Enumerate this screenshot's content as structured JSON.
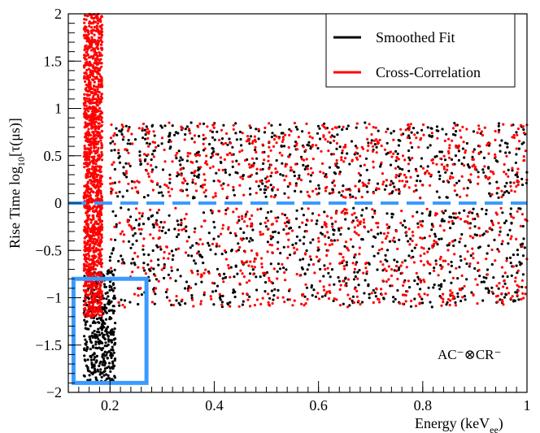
{
  "chart_data": {
    "type": "scatter",
    "title": "",
    "xlabel": "Energy (keV",
    "xlabel_sub": "ee",
    "xlabel_suffix": ")",
    "ylabel": "Rise Time log",
    "ylabel_sub": "10",
    "ylabel_suffix": "[τ(μs)]",
    "xlim": [
      0.12,
      1.0
    ],
    "ylim": [
      -2,
      2
    ],
    "x_ticks": [
      0.2,
      0.4,
      0.6,
      0.8,
      1.0
    ],
    "x_tick_labels": [
      "0.2",
      "0.4",
      "0.6",
      "0.8",
      "1"
    ],
    "y_ticks": [
      -2,
      -1.5,
      -1,
      -0.5,
      0,
      0.5,
      1,
      1.5,
      2
    ],
    "y_tick_labels": [
      "−2",
      "−1.5",
      "−1",
      "−0.5",
      "0",
      "0.5",
      "1",
      "1.5",
      "2"
    ],
    "grid": false,
    "legend_position": "top-right",
    "series": [
      {
        "name": "Smoothed Fit",
        "color": "#000000"
      },
      {
        "name": "Cross-Correlation",
        "color": "#ff0000"
      }
    ],
    "point_clusters": [
      {
        "series": 0,
        "x_range": [
          0.15,
          0.21
        ],
        "y_range": [
          -1.9,
          -0.7
        ],
        "count": 420
      },
      {
        "series": 1,
        "x_range": [
          0.15,
          0.185
        ],
        "y_range": [
          -1.2,
          2.0
        ],
        "count": 1400
      },
      {
        "series": 0,
        "x_range": [
          0.2,
          1.0
        ],
        "y_range": [
          0.05,
          0.85
        ],
        "count": 520
      },
      {
        "series": 1,
        "x_range": [
          0.2,
          1.0
        ],
        "y_range": [
          0.05,
          0.85
        ],
        "count": 560
      },
      {
        "series": 0,
        "x_range": [
          0.2,
          1.0
        ],
        "y_range": [
          -1.1,
          -0.05
        ],
        "count": 650
      },
      {
        "series": 1,
        "x_range": [
          0.2,
          1.0
        ],
        "y_range": [
          -1.1,
          -0.05
        ],
        "count": 600
      }
    ],
    "threshold_line": {
      "y": 0,
      "color": "#3a9bff",
      "style": "dashed"
    },
    "highlight_box": {
      "x_range": [
        0.13,
        0.27
      ],
      "y_range": [
        -1.9,
        -0.8
      ],
      "color": "#3a9bff"
    },
    "annotation": "AC⁻⊗CR⁻"
  }
}
